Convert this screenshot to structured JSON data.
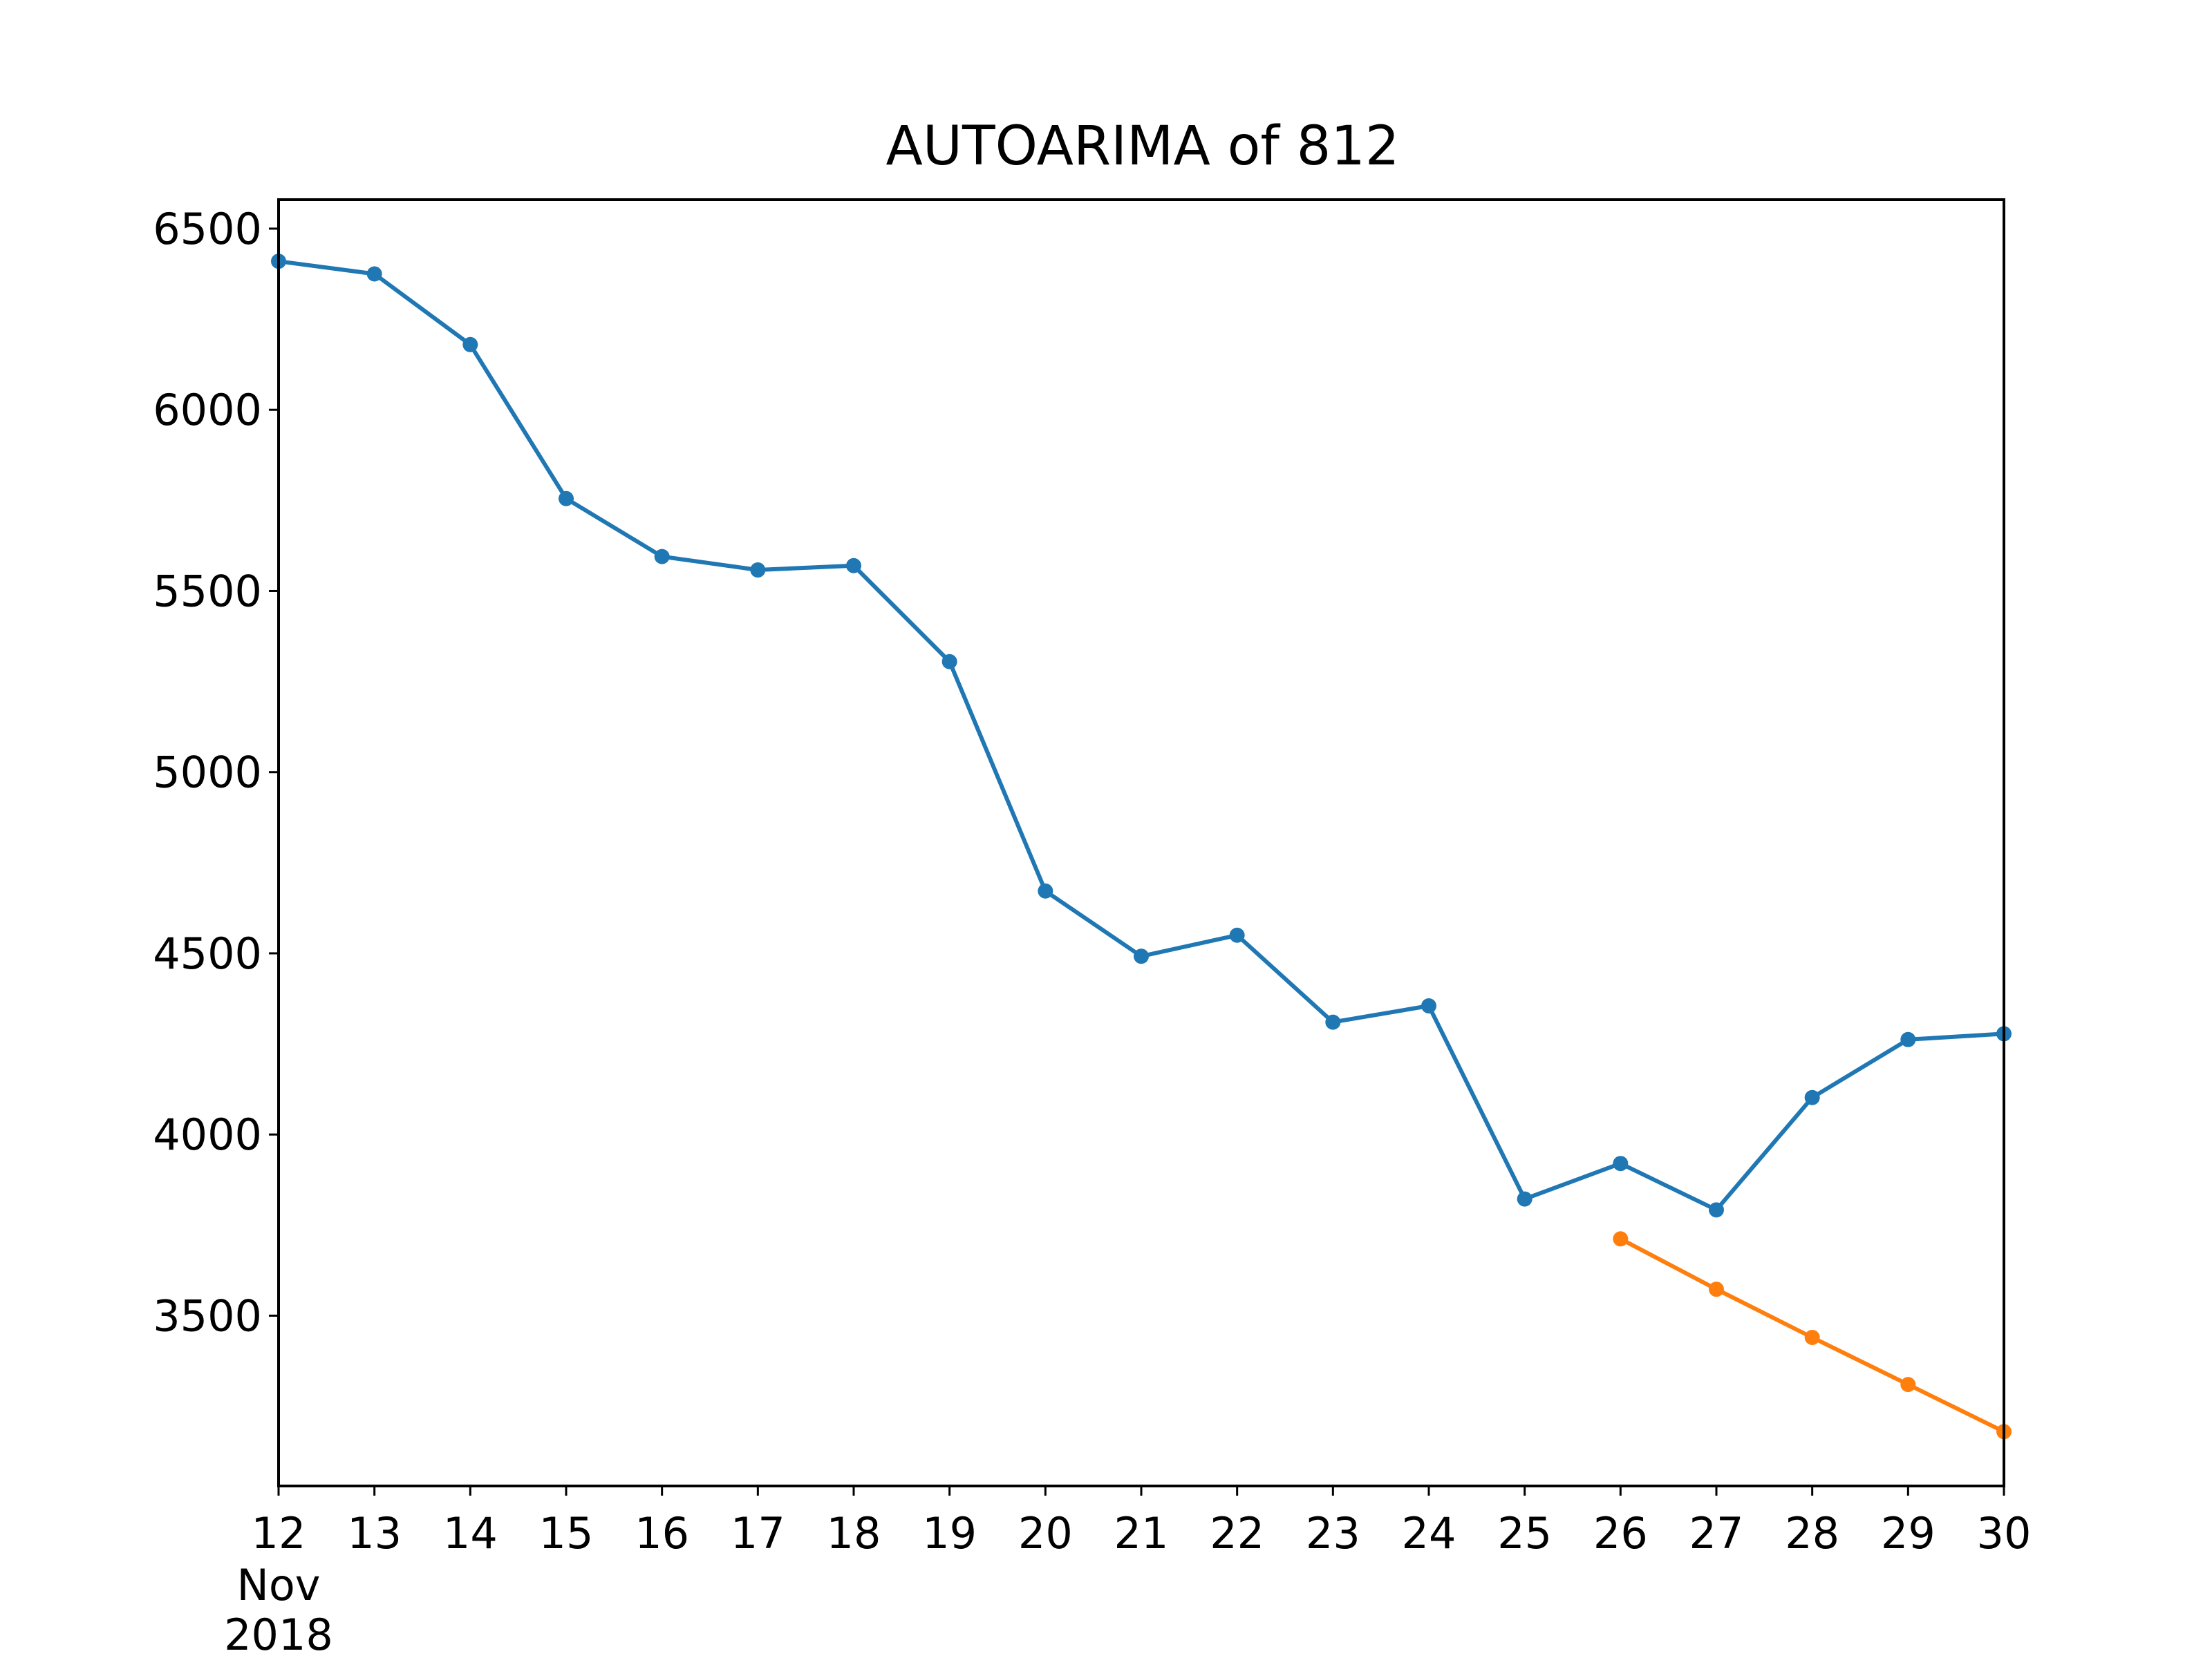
{
  "chart_data": {
    "type": "line",
    "title": "AUTOARIMA of 812",
    "xlabel": "",
    "ylabel": "",
    "x": [
      "2018-11-12",
      "2018-11-13",
      "2018-11-14",
      "2018-11-15",
      "2018-11-16",
      "2018-11-17",
      "2018-11-18",
      "2018-11-19",
      "2018-11-20",
      "2018-11-21",
      "2018-11-22",
      "2018-11-23",
      "2018-11-24",
      "2018-11-25",
      "2018-11-26",
      "2018-11-27",
      "2018-11-28",
      "2018-11-29",
      "2018-11-30"
    ],
    "x_tick_labels": [
      "12",
      "13",
      "14",
      "15",
      "16",
      "17",
      "18",
      "19",
      "20",
      "21",
      "22",
      "23",
      "24",
      "25",
      "26",
      "27",
      "28",
      "29",
      "30"
    ],
    "x_tick_sublabels": [
      "Nov",
      "2018"
    ],
    "ylim": [
      3030,
      6580
    ],
    "yticks": [
      3500,
      4000,
      4500,
      5000,
      5500,
      6000,
      6500
    ],
    "grid": false,
    "series": [
      {
        "color": "#1f77b4",
        "x": [
          "2018-11-12",
          "2018-11-13",
          "2018-11-14",
          "2018-11-15",
          "2018-11-16",
          "2018-11-17",
          "2018-11-18",
          "2018-11-19",
          "2018-11-20",
          "2018-11-21",
          "2018-11-22",
          "2018-11-23",
          "2018-11-24",
          "2018-11-25",
          "2018-11-26",
          "2018-11-27",
          "2018-11-28",
          "2018-11-29",
          "2018-11-30"
        ],
        "values": [
          6410,
          6375,
          6180,
          5755,
          5595,
          5558,
          5570,
          5305,
          4672,
          4492,
          4550,
          4310,
          4355,
          3822,
          3920,
          3792,
          4102,
          4262,
          4278
        ]
      },
      {
        "color": "#ff7f0e",
        "x": [
          "2018-11-26",
          "2018-11-27",
          "2018-11-28",
          "2018-11-29",
          "2018-11-30"
        ],
        "values": [
          3712,
          3573,
          3440,
          3310,
          3180
        ]
      }
    ]
  }
}
